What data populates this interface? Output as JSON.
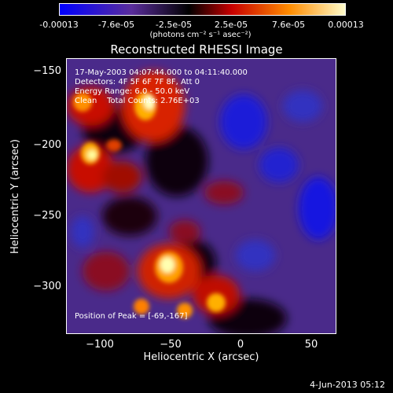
{
  "colorbar": {
    "ticks": [
      "-0.00013",
      "-7.6e-05",
      "-2.5e-05",
      "2.5e-05",
      "7.6e-05",
      "0.00013"
    ],
    "units": "(photons cm⁻² s⁻¹ asec⁻²)",
    "colors": [
      "#0000ff",
      "#5a2d9c",
      "#000000",
      "#c80000",
      "#ff8c00",
      "#ffffd0"
    ]
  },
  "title": "Reconstructed RHESSI Image",
  "annotations": {
    "time": "17-May-2003 04:07:44.000 to 04:11:40.000",
    "detectors": "Detectors: 4F 5F 6F 7F 8F, Att 0",
    "energy": "Energy Range: 6.0 - 50.0 keV",
    "clean": "Clean    Total Counts: 2.76E+03",
    "peak": "Position of Peak = [-69,-167]"
  },
  "axes": {
    "xlabel": "Heliocentric X (arcsec)",
    "ylabel": "Heliocentric Y (arcsec)",
    "xticks": [
      "−100",
      "−50",
      "0",
      "50"
    ],
    "yticks": [
      "−150",
      "−200",
      "−250",
      "−300"
    ]
  },
  "footer": {
    "date": "4-Jun-2013 05:12"
  }
}
